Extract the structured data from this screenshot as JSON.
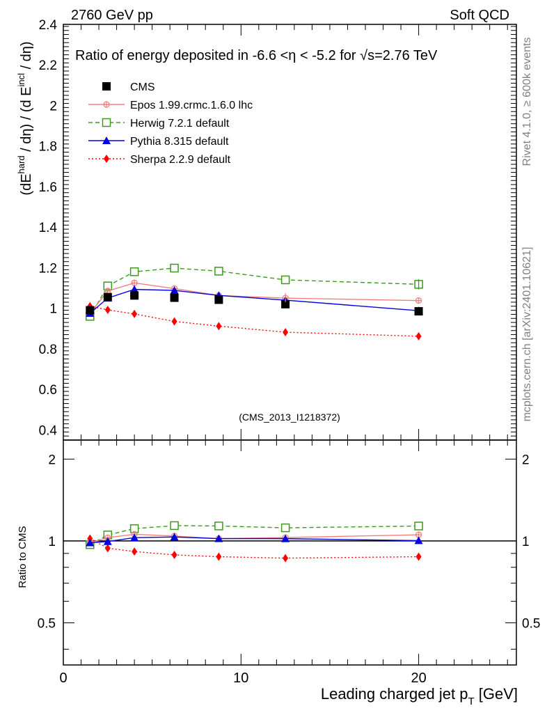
{
  "header": {
    "left": "2760 GeV pp",
    "right": "Soft QCD"
  },
  "side_labels": {
    "rivet": "Rivet 4.1.0, ≥ 600k events",
    "mcplots": "mcplots.cern.ch [arXiv:2401.10621]"
  },
  "chart_data": {
    "type": "line",
    "title_prefix": "Ratio of energy deposited in -6.6 <η < -5.2 for ",
    "title_sqrt": "√s",
    "title_suffix": "=2.76 TeV",
    "watermark": "(CMS_2013_I1218372)",
    "xlabel": "Leading charged jet p",
    "xlabel_sub": "T",
    "xlabel_unit": " [GeV]",
    "ylabel_main": "(dE",
    "ylabel_sup1": "hard",
    "ylabel_mid": " / dη) / (d E",
    "ylabel_sup2": "incl",
    "ylabel_end": " / dη)",
    "ratio_ylabel": "Ratio to CMS",
    "xlim": [
      0,
      25.5
    ],
    "ylim": [
      0.35,
      2.4
    ],
    "ratio_ylim": [
      0.35,
      2.35
    ],
    "x_ticks": [
      "0",
      "10",
      "20"
    ],
    "y_ticks": [
      "0.4",
      "0.6",
      "0.8",
      "1",
      "1.2",
      "1.4",
      "1.6",
      "1.8",
      "2",
      "2.2",
      "2.4"
    ],
    "ratio_ticks": [
      "0.5",
      "1",
      "2"
    ],
    "x": [
      1.5,
      2.5,
      4.0,
      6.25,
      8.75,
      12.5,
      20.0
    ],
    "cms": [
      0.99,
      1.055,
      1.063,
      1.052,
      1.042,
      1.02,
      0.985
    ],
    "series": [
      {
        "name": "CMS",
        "style": "data",
        "color": "#000000",
        "values": [
          0.99,
          1.055,
          1.063,
          1.052,
          1.042,
          1.02,
          0.985
        ]
      },
      {
        "name": "Epos 1.99.crmc.1.6.0 lhc",
        "style": "epos",
        "color": "#f08080",
        "values": [
          0.975,
          1.085,
          1.125,
          1.097,
          1.063,
          1.05,
          1.038
        ]
      },
      {
        "name": "Herwig 7.2.1 default",
        "style": "herwig",
        "color": "#3a9a1a",
        "values": [
          0.96,
          1.11,
          1.18,
          1.198,
          1.183,
          1.14,
          1.118
        ]
      },
      {
        "name": "Pythia 8.315 default",
        "style": "pythia",
        "color": "#0000e0",
        "values": [
          0.975,
          1.05,
          1.093,
          1.088,
          1.063,
          1.04,
          0.988
        ]
      },
      {
        "name": "Sherpa 2.2.9 default",
        "style": "sherpa",
        "color": "#ff0000",
        "values": [
          1.01,
          0.992,
          0.972,
          0.935,
          0.912,
          0.882,
          0.862
        ]
      }
    ]
  }
}
